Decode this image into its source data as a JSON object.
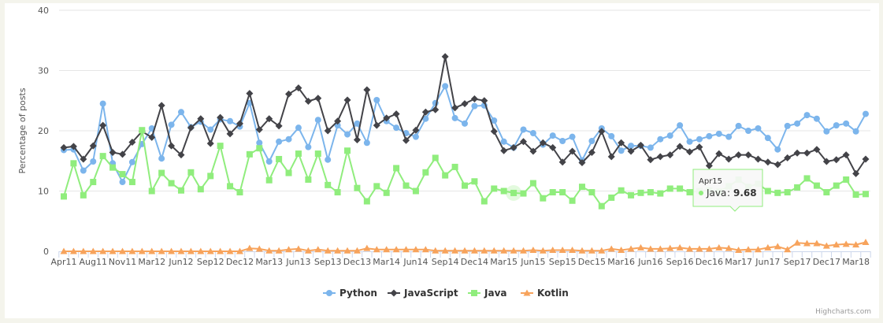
{
  "chart_data": {
    "type": "line",
    "title": "",
    "ylabel": "Percentage of posts",
    "xlabel": "",
    "ylim": [
      0,
      40
    ],
    "yticks": [
      0,
      10,
      20,
      30,
      40
    ],
    "grid": true,
    "legend_placement": "bottom",
    "x_tick_labels": [
      "Apr11",
      "Aug11",
      "Nov11",
      "Mar12",
      "Jun12",
      "Sep12",
      "Dec12",
      "Mar13",
      "Jun13",
      "Sep13",
      "Dec13",
      "Mar14",
      "Jun14",
      "Sep14",
      "Dec14",
      "Mar15",
      "Jun15",
      "Sep15",
      "Dec15",
      "Mar16",
      "Jun16",
      "Sep16",
      "Dec16",
      "Mar17",
      "Jun17",
      "Sep17",
      "Dec17",
      "Mar18"
    ],
    "x_tick_every": 3,
    "series": [
      {
        "name": "Python",
        "color": "#7cb5ec",
        "marker": "circle",
        "values": [
          16.8,
          16.9,
          13.4,
          14.9,
          24.5,
          14.6,
          11.5,
          14.8,
          17.8,
          20.4,
          15.4,
          21.0,
          23.1,
          20.6,
          21.5,
          20.2,
          21.9,
          21.6,
          20.7,
          24.6,
          18.0,
          14.9,
          18.2,
          18.6,
          20.5,
          17.3,
          21.8,
          15.2,
          20.9,
          19.4,
          21.2,
          18.0,
          25.1,
          21.6,
          20.5,
          19.6,
          19.0,
          22.0,
          24.6,
          27.4,
          22.1,
          21.2,
          24.1,
          24.2,
          21.7,
          18.2,
          17.2,
          20.2,
          19.6,
          17.7,
          19.2,
          18.3,
          19.0,
          15.1,
          18.3,
          20.4,
          19.1,
          16.7,
          17.5,
          17.5,
          17.2,
          18.6,
          19.2,
          20.9,
          18.2,
          18.6,
          19.1,
          19.5,
          19.0,
          20.8,
          20.0,
          20.4,
          18.8,
          16.9,
          20.8,
          21.2,
          22.6,
          22.0,
          19.9,
          20.9,
          21.2,
          19.9,
          22.8
        ]
      },
      {
        "name": "JavaScript",
        "color": "#434348",
        "marker": "diamond",
        "values": [
          17.2,
          17.4,
          15.3,
          17.5,
          20.9,
          16.4,
          16.1,
          18.1,
          19.9,
          18.9,
          24.2,
          17.5,
          16.0,
          20.5,
          22.0,
          17.9,
          22.2,
          19.5,
          21.2,
          26.2,
          20.2,
          22.0,
          20.8,
          26.1,
          27.1,
          24.9,
          25.4,
          20.0,
          21.6,
          25.1,
          18.5,
          26.8,
          20.9,
          22.1,
          22.8,
          18.4,
          20.1,
          23.1,
          23.5,
          32.3,
          23.8,
          24.5,
          25.3,
          25.0,
          19.9,
          16.7,
          17.2,
          18.2,
          16.6,
          18.0,
          17.2,
          14.8,
          16.6,
          14.7,
          16.4,
          19.9,
          15.7,
          18.0,
          16.6,
          17.6,
          15.2,
          15.7,
          16.0,
          17.4,
          16.5,
          17.3,
          14.2,
          16.2,
          15.3,
          16.0,
          16.0,
          15.3,
          14.8,
          14.4,
          15.5,
          16.3,
          16.3,
          16.9,
          14.9,
          15.2,
          16.0,
          12.9,
          15.3
        ]
      },
      {
        "name": "Java",
        "color": "#90ed7d",
        "marker": "square",
        "values": [
          9.1,
          14.6,
          9.3,
          11.5,
          15.8,
          13.9,
          12.8,
          11.5,
          20.1,
          10.0,
          13.0,
          11.3,
          10.1,
          13.1,
          10.3,
          12.5,
          17.5,
          10.8,
          9.8,
          16.1,
          17.1,
          11.8,
          15.3,
          13.0,
          16.2,
          11.9,
          16.2,
          11.0,
          9.8,
          16.7,
          10.5,
          8.3,
          10.8,
          9.7,
          13.8,
          10.9,
          10.0,
          13.1,
          15.5,
          12.6,
          14.0,
          10.9,
          11.6,
          8.3,
          10.4,
          10.0,
          9.68,
          9.6,
          11.3,
          8.8,
          9.8,
          9.8,
          8.4,
          10.7,
          9.8,
          7.5,
          8.9,
          10.1,
          9.3,
          9.7,
          9.8,
          9.6,
          10.4,
          10.4,
          9.8,
          10.0,
          10.1,
          9.9,
          10.8,
          11.9,
          10.7,
          11.2,
          10.0,
          9.7,
          9.8,
          10.6,
          12.1,
          10.9,
          9.8,
          10.9,
          11.9,
          9.4,
          9.5
        ]
      },
      {
        "name": "Kotlin",
        "color": "#f7a35c",
        "marker": "triangle",
        "values": [
          0,
          0,
          0,
          0,
          0,
          0,
          0,
          0,
          0,
          0,
          0,
          0,
          0,
          0,
          0,
          0,
          0,
          0,
          0,
          0.5,
          0.4,
          0.1,
          0.1,
          0.3,
          0.4,
          0.1,
          0.3,
          0.1,
          0.1,
          0.1,
          0.1,
          0.5,
          0.3,
          0.3,
          0.3,
          0.3,
          0.3,
          0.3,
          0.1,
          0.1,
          0.1,
          0.1,
          0.1,
          0.1,
          0.1,
          0.1,
          0.1,
          0.1,
          0.2,
          0.1,
          0.2,
          0.2,
          0.2,
          0.1,
          0.1,
          0.1,
          0.4,
          0.2,
          0.4,
          0.6,
          0.4,
          0.4,
          0.5,
          0.6,
          0.4,
          0.4,
          0.4,
          0.6,
          0.5,
          0.2,
          0.3,
          0.3,
          0.6,
          0.8,
          0.3,
          1.4,
          1.3,
          1.3,
          0.9,
          1.1,
          1.2,
          1.1,
          1.5
        ]
      }
    ],
    "tooltip": {
      "category": "Apr15",
      "series": "Java",
      "value": "9.68",
      "point_index": 46
    }
  },
  "credits": "Highcharts.com"
}
